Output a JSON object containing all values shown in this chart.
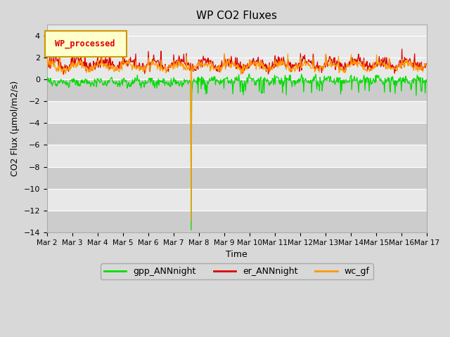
{
  "title": "WP CO2 Fluxes",
  "xlabel": "Time",
  "ylabel": "CO2 Flux (μmol/m2/s)",
  "ylim": [
    -14,
    5
  ],
  "yticks": [
    4,
    2,
    0,
    -2,
    -4,
    -6,
    -8,
    -10,
    -12,
    -14
  ],
  "x_tick_labels": [
    "Mar 2",
    "Mar 3",
    "Mar 4",
    "Mar 5",
    "Mar 6",
    "Mar 7",
    "Mar 8",
    "Mar 9",
    "Mar 10",
    "Mar 11",
    "Mar 12",
    "Mar 13",
    "Mar 14",
    "Mar 15",
    "Mar 16",
    "Mar 17"
  ],
  "colors": {
    "gpp": "#00dd00",
    "er": "#dd0000",
    "wc": "#ff9900",
    "fig_bg": "#d8d8d8",
    "plot_bg_light": "#e8e8e8",
    "plot_bg_dark": "#cccccc",
    "legend_box_fill": "#ffffcc",
    "legend_box_edge": "#cc9900",
    "grid_line": "#ffffff"
  },
  "legend_label": "WP_processed",
  "series_labels": [
    "gpp_ANNnight",
    "er_ANNnight",
    "wc_gf"
  ],
  "n_points": 720,
  "spike_day": 7.7,
  "spike_gpp_val": -13.8,
  "spike_wc_val": -13.0
}
